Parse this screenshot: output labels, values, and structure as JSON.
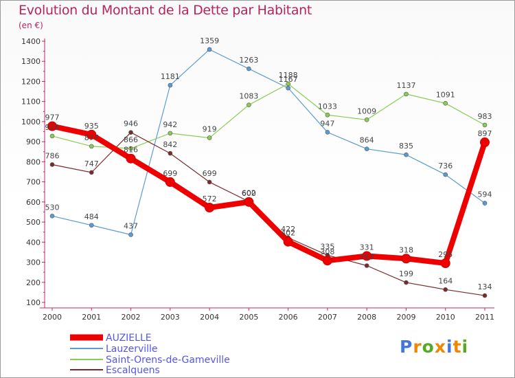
{
  "title": "Evolution du Montant de la Dette par Habitant",
  "unit": "(en €)",
  "logo": "Proxiti",
  "chart_data": {
    "type": "line",
    "x": [
      "2000",
      "2001",
      "2002",
      "2003",
      "2004",
      "2005",
      "2006",
      "2007",
      "2008",
      "2009",
      "2010",
      "2011"
    ],
    "yticks": [
      100,
      200,
      300,
      400,
      500,
      600,
      700,
      800,
      900,
      1000,
      1100,
      1200,
      1300,
      1400
    ],
    "ylim": [
      100,
      1400
    ],
    "grid": false,
    "legend_position": "bottom-left",
    "series": [
      {
        "name": "AUZIELLE",
        "color": "#ee0000",
        "values": [
          977,
          935,
          816,
          699,
          572,
          600,
          402,
          308,
          331,
          318,
          295,
          897
        ],
        "labels": [
          "977",
          "935",
          "816",
          "699",
          "572",
          "600",
          "402",
          "308",
          "331",
          "318",
          "295",
          "897"
        ]
      },
      {
        "name": "Lauzerville",
        "color": "#5b9bd5",
        "values": [
          530,
          484,
          437,
          1181,
          1359,
          1263,
          1167,
          947,
          864,
          835,
          736,
          594
        ],
        "labels": [
          "530",
          "484",
          "437",
          "1181",
          "1359",
          "1263",
          "1167",
          "947",
          "864",
          "835",
          "736",
          "594"
        ]
      },
      {
        "name": "Saint-Orens-de-Gameville",
        "color": "#88cc55",
        "values": [
          928,
          877,
          866,
          942,
          919,
          1083,
          1188,
          1033,
          1009,
          1137,
          1091,
          983
        ],
        "labels": [
          "928",
          "877",
          "866",
          "942",
          "919",
          "1083",
          "1188",
          "1033",
          "1009",
          "1137",
          "1091",
          "983"
        ]
      },
      {
        "name": "Escalquens",
        "color": "#7a2a2a",
        "values": [
          786,
          747,
          946,
          842,
          699,
          602,
          422,
          335,
          283,
          199,
          164,
          134
        ],
        "labels": [
          "786",
          "747",
          "946",
          "842",
          "699",
          "602",
          "422",
          "335",
          "283",
          "199",
          "164",
          "134"
        ]
      }
    ]
  }
}
